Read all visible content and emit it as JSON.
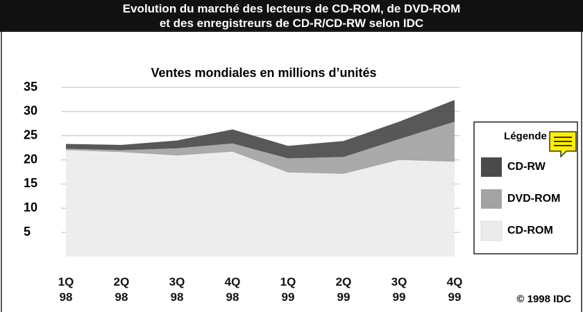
{
  "chart_data": {
    "type": "stacked_area",
    "title": "Evolution du marché des lecteurs de CD-ROM, de DVD-ROM\net des enregistreurs de CD-R/CD-RW selon IDC",
    "subtitle": "Ventes mondiales en millions d’unités",
    "categories": [
      "1Q 98",
      "2Q 98",
      "3Q 98",
      "4Q 98",
      "1Q 99",
      "2Q 99",
      "3Q 99",
      "4Q 99"
    ],
    "series": [
      {
        "name": "CD-ROM",
        "color": "#ebebeb",
        "values": [
          22,
          21.6,
          20.9,
          21.7,
          17.4,
          17.1,
          20,
          19.6
        ]
      },
      {
        "name": "DVD-ROM",
        "color": "#a3a3a3",
        "values": [
          0.3,
          0.4,
          1.5,
          1.7,
          2.9,
          3.5,
          4.3,
          8.3
        ]
      },
      {
        "name": "CD-RW",
        "color": "#4a4a4a",
        "values": [
          1,
          1.1,
          1.6,
          2.9,
          2.6,
          3.3,
          3.6,
          4.5
        ]
      }
    ],
    "ylim": [
      0,
      35
    ],
    "yticks": [
      5,
      10,
      15,
      20,
      25,
      30,
      35
    ],
    "grid": true,
    "legend_title": "Légende",
    "legend": "right",
    "source": "© 1998 IDC"
  }
}
